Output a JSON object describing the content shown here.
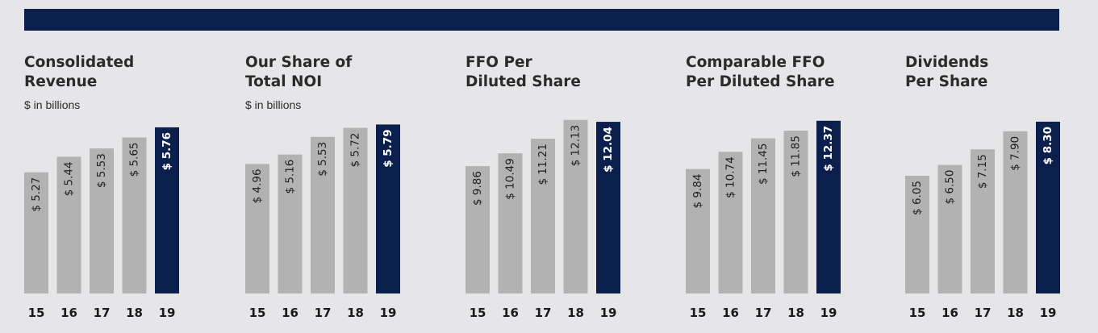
{
  "colors": {
    "banner": "#0b1f4d",
    "highlight": "#0b1f4d",
    "bar": "#b3b2b2",
    "background": "#e6e5e8"
  },
  "chart_data": [
    {
      "type": "bar",
      "title": "Consolidated\nRevenue",
      "subtitle": "$ in billions",
      "categories": [
        "15",
        "16",
        "17",
        "18",
        "19"
      ],
      "values": [
        5.27,
        5.44,
        5.53,
        5.65,
        5.76
      ],
      "labels": [
        "$ 5.27",
        "$ 5.44",
        "$ 5.53",
        "$ 5.65",
        "$ 5.76"
      ],
      "highlight_index": 4,
      "ylim": [
        3.95,
        5.9
      ]
    },
    {
      "type": "bar",
      "title": "Our Share of\nTotal NOI",
      "subtitle": "$ in billions",
      "categories": [
        "15",
        "16",
        "17",
        "18",
        "19"
      ],
      "values": [
        4.96,
        5.16,
        5.53,
        5.72,
        5.79
      ],
      "labels": [
        "$ 4.96",
        "$ 5.16",
        "$ 5.53",
        "$ 5.72",
        "$ 5.79"
      ],
      "highlight_index": 4,
      "ylim": [
        2.24,
        6.0
      ]
    },
    {
      "type": "bar",
      "title": "FFO Per\nDiluted Share",
      "subtitle": "",
      "categories": [
        "15",
        "16",
        "17",
        "18",
        "19"
      ],
      "values": [
        9.86,
        10.49,
        11.21,
        12.13,
        12.04
      ],
      "labels": [
        "$ 9.86",
        "$ 10.49",
        "$ 11.21",
        "$ 12.13",
        "$ 12.04"
      ],
      "highlight_index": 4,
      "ylim": [
        3.6,
        12.4
      ]
    },
    {
      "type": "bar",
      "title": "Comparable FFO\nPer Diluted Share",
      "subtitle": "",
      "categories": [
        "15",
        "16",
        "17",
        "18",
        "19"
      ],
      "values": [
        9.84,
        10.74,
        11.45,
        11.85,
        12.37
      ],
      "labels": [
        "$ 9.84",
        "$ 10.74",
        "$ 11.45",
        "$ 11.85",
        "$ 12.37"
      ],
      "highlight_index": 4,
      "ylim": [
        3.3,
        12.7
      ]
    },
    {
      "type": "bar",
      "title": "Dividends\nPer Share",
      "subtitle": "",
      "categories": [
        "15",
        "16",
        "17",
        "18",
        "19"
      ],
      "values": [
        6.05,
        6.5,
        7.15,
        7.9,
        8.3
      ],
      "labels": [
        "$ 6.05",
        "$ 6.50",
        "$ 7.15",
        "$ 7.90",
        "$ 8.30"
      ],
      "highlight_index": 4,
      "ylim": [
        1.15,
        8.6
      ]
    }
  ]
}
